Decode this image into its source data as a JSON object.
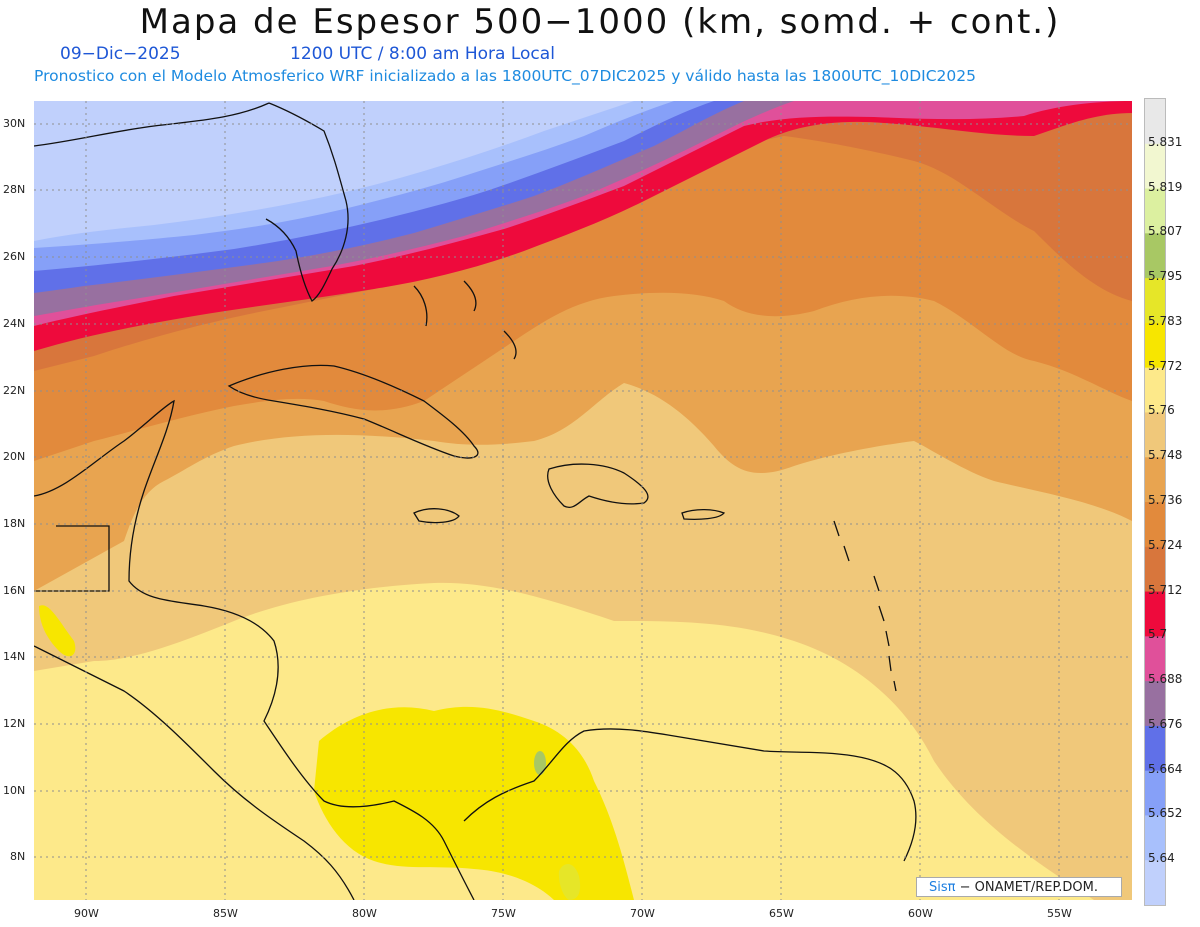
{
  "header": {
    "title": "Mapa de Espesor 500−1000 (km, somd. + cont.)",
    "date": "09−Dic−2025",
    "time": "1200 UTC / 8:00 am Hora Local",
    "subtitle": "Pronostico con el Modelo Atmosferico WRF inicializado a las 1800UTC_07DIC2025 y válido hasta las  1800UTC_10DIC2025"
  },
  "map": {
    "lat_labels": [
      "30N",
      "28N",
      "26N",
      "24N",
      "22N",
      "20N",
      "18N",
      "16N",
      "14N",
      "12N",
      "10N",
      "8N"
    ],
    "lon_labels": [
      "90W",
      "85W",
      "80W",
      "75W",
      "70W",
      "65W",
      "60W",
      "55W"
    ]
  },
  "colorbar": {
    "labels": [
      "5.831",
      "5.819",
      "5.807",
      "5.795",
      "5.783",
      "5.772",
      "5.76",
      "5.748",
      "5.736",
      "5.724",
      "5.712",
      "5.7",
      "5.688",
      "5.676",
      "5.664",
      "5.652",
      "5.64"
    ],
    "colors": [
      "#e8e8e8",
      "#f2f7d0",
      "#dcf0a0",
      "#a8c864",
      "#e6e628",
      "#f7e600",
      "#fde98a",
      "#f0c87a",
      "#e8a450",
      "#e28a3c",
      "#d8763c",
      "#ee0a3c",
      "#e0509a",
      "#9870a0",
      "#6070e8",
      "#86a0f8",
      "#a8c0fc",
      "#c0d0fc"
    ]
  },
  "credit": {
    "logo": "Sisπ",
    "text": " − ONAMET/REP.DOM."
  },
  "colors": {
    "title": "#111111",
    "date": "#1e57d6",
    "subtitle": "#1e8be0"
  }
}
